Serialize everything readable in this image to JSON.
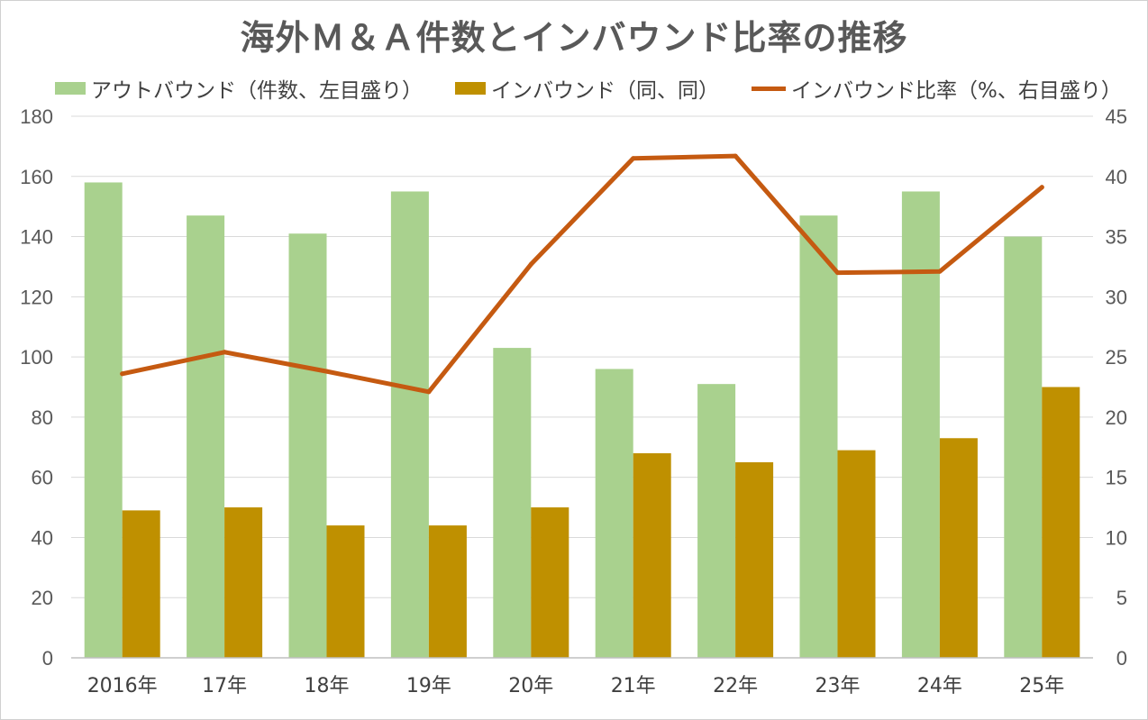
{
  "chart_data": {
    "type": "bar+line",
    "title": "海外Ｍ＆Ａ件数とインバウンド比率の推移",
    "categories": [
      "2016年",
      "17年",
      "18年",
      "19年",
      "20年",
      "21年",
      "22年",
      "23年",
      "24年",
      "25年"
    ],
    "series": [
      {
        "name": "アウトバウンド（件数、左目盛り）",
        "type": "bar",
        "axis": "left",
        "color": "#a9d18e",
        "values": [
          158,
          147,
          141,
          155,
          103,
          96,
          91,
          147,
          155,
          140
        ]
      },
      {
        "name": "インバウンド（同、同）",
        "type": "bar",
        "axis": "left",
        "color": "#bf9000",
        "values": [
          49,
          50,
          44,
          44,
          50,
          68,
          65,
          69,
          73,
          90
        ]
      },
      {
        "name": "インバウンド比率（%、右目盛り）",
        "type": "line",
        "axis": "right",
        "color": "#c55a11",
        "values": [
          23.6,
          25.4,
          23.8,
          22.1,
          32.7,
          41.5,
          41.7,
          32.0,
          32.1,
          39.1
        ]
      }
    ],
    "y_left": {
      "min": 0,
      "max": 180,
      "ticks": [
        "0",
        "20",
        "40",
        "60",
        "80",
        "100",
        "120",
        "140",
        "160",
        "180"
      ]
    },
    "y_right": {
      "min": 0,
      "max": 45,
      "ticks": [
        "0",
        "5",
        "10",
        "15",
        "20",
        "25",
        "30",
        "35",
        "40",
        "45"
      ]
    },
    "grid": true,
    "legend_position": "top"
  }
}
